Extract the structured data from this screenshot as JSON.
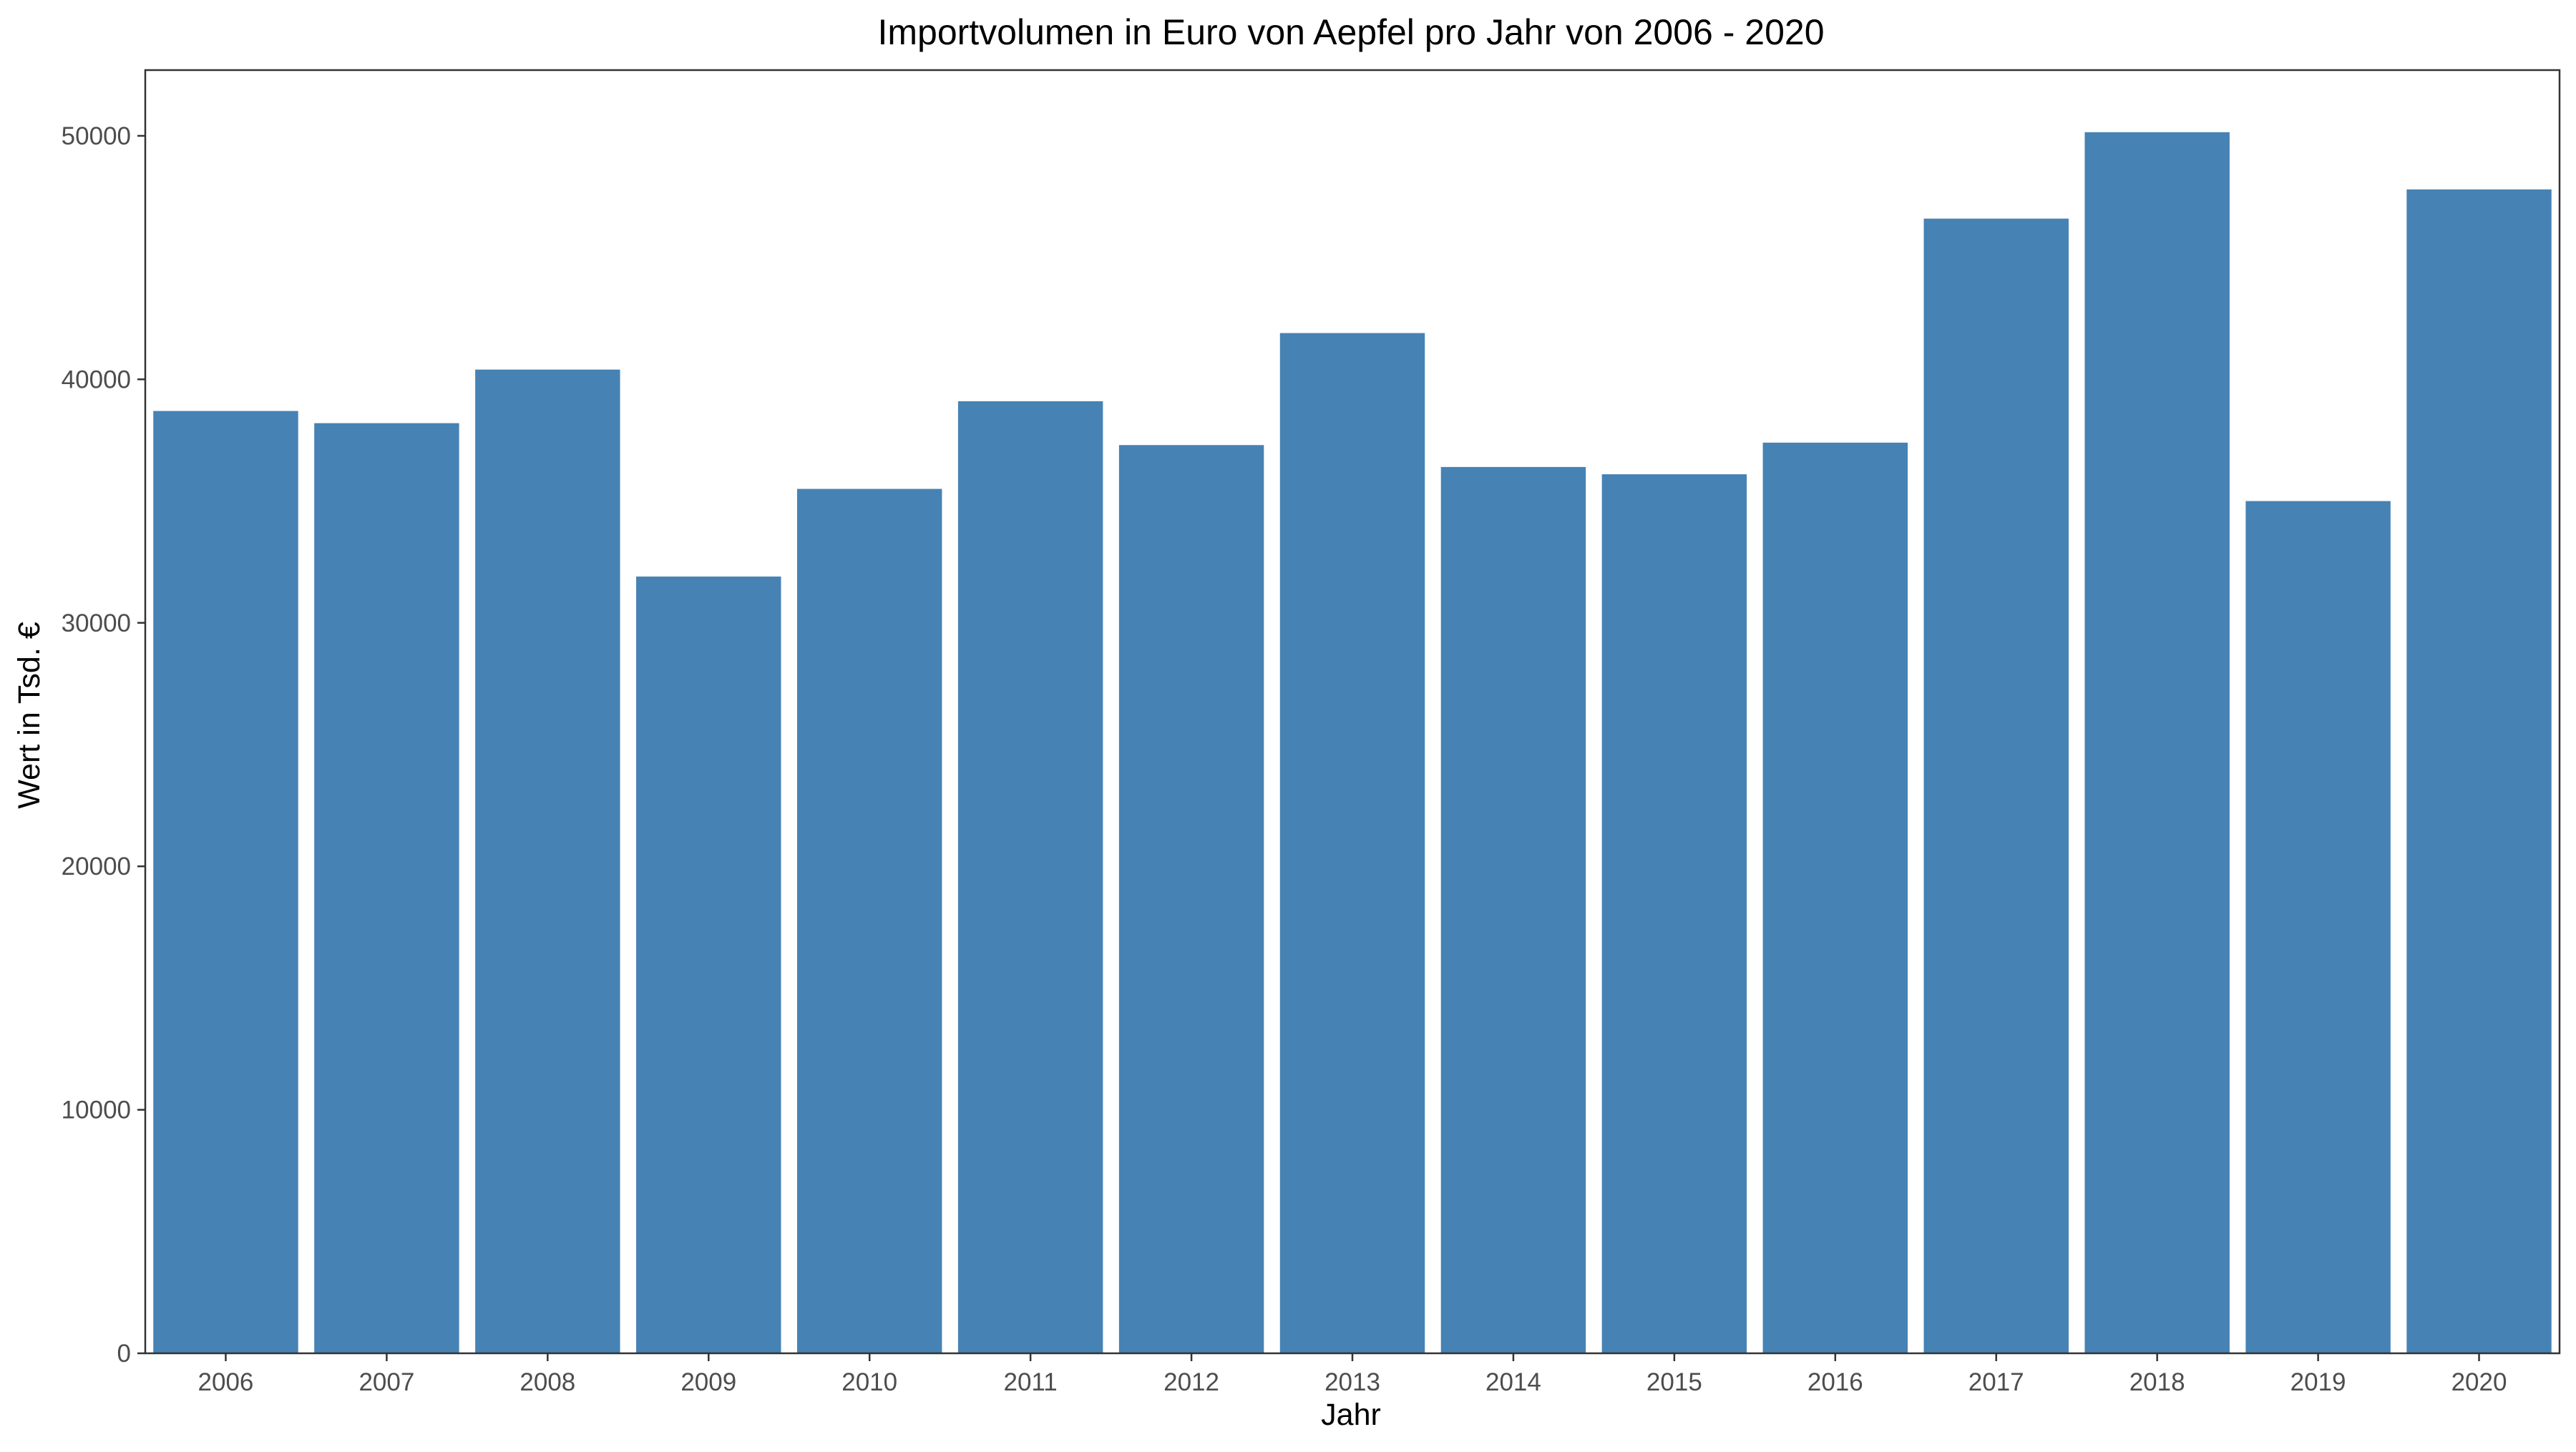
{
  "chart_data": {
    "type": "bar",
    "title": "Importvolumen in Euro von Aepfel pro Jahr von 2006 - 2020",
    "xlabel": "Jahr",
    "ylabel": "Wert in Tsd. €",
    "categories": [
      "2006",
      "2007",
      "2008",
      "2009",
      "2010",
      "2011",
      "2012",
      "2013",
      "2014",
      "2015",
      "2016",
      "2017",
      "2018",
      "2019",
      "2020"
    ],
    "values": [
      38700,
      38200,
      40400,
      31900,
      35500,
      39100,
      37300,
      41900,
      36400,
      36100,
      37400,
      46600,
      50150,
      35000,
      47800
    ],
    "ylim": [
      0,
      52700
    ],
    "yticks": [
      0,
      10000,
      20000,
      30000,
      40000,
      50000
    ],
    "ytick_labels": [
      "0",
      "10000",
      "20000",
      "30000",
      "40000",
      "50000"
    ],
    "bar_color": "#4682B4",
    "grid": false,
    "legend": "none"
  }
}
